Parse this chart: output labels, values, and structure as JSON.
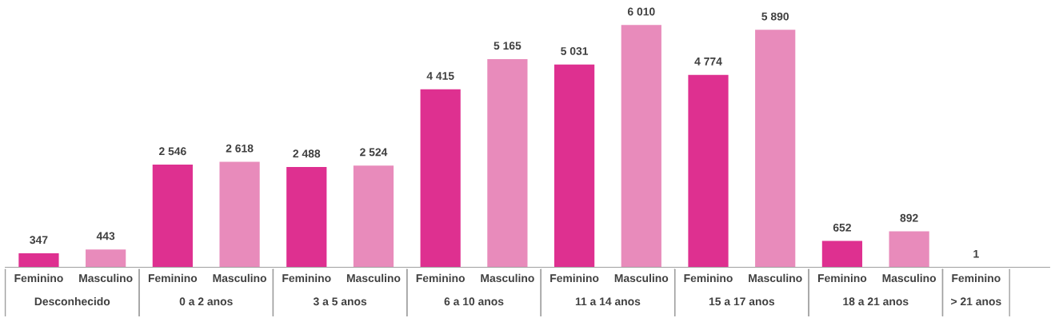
{
  "chart_data": {
    "type": "bar",
    "categories": [
      "Feminino",
      "Masculino",
      "Feminino",
      "Masculino",
      "Feminino",
      "Masculino",
      "Feminino",
      "Masculino",
      "Feminino",
      "Masculino",
      "Feminino",
      "Masculino",
      "Feminino",
      "Masculino",
      "Feminino"
    ],
    "values": [
      347,
      443,
      2546,
      2618,
      2488,
      2524,
      4415,
      5165,
      5031,
      6010,
      4774,
      5890,
      652,
      892,
      1
    ],
    "value_labels": [
      "347",
      "443",
      "2 546",
      "2 618",
      "2 488",
      "2 524",
      "4 415",
      "5 165",
      "5 031",
      "6 010",
      "4 774",
      "5 890",
      "652",
      "892",
      "1"
    ],
    "colors": [
      "#de3090",
      "#e88bbb",
      "#de3090",
      "#e88bbb",
      "#de3090",
      "#e88bbb",
      "#de3090",
      "#e88bbb",
      "#de3090",
      "#e88bbb",
      "#de3090",
      "#e88bbb",
      "#de3090",
      "#e88bbb",
      "#de3090"
    ],
    "annotations": [
      "Desconhecido",
      "0 a 2 anos",
      "3 a 5 anos",
      "6 a 10 anos",
      "11 a 14 anos",
      "15 a 17 anos",
      "18 a 21 anos",
      "> 21 anos"
    ],
    "grid": false,
    "legend": false
  }
}
